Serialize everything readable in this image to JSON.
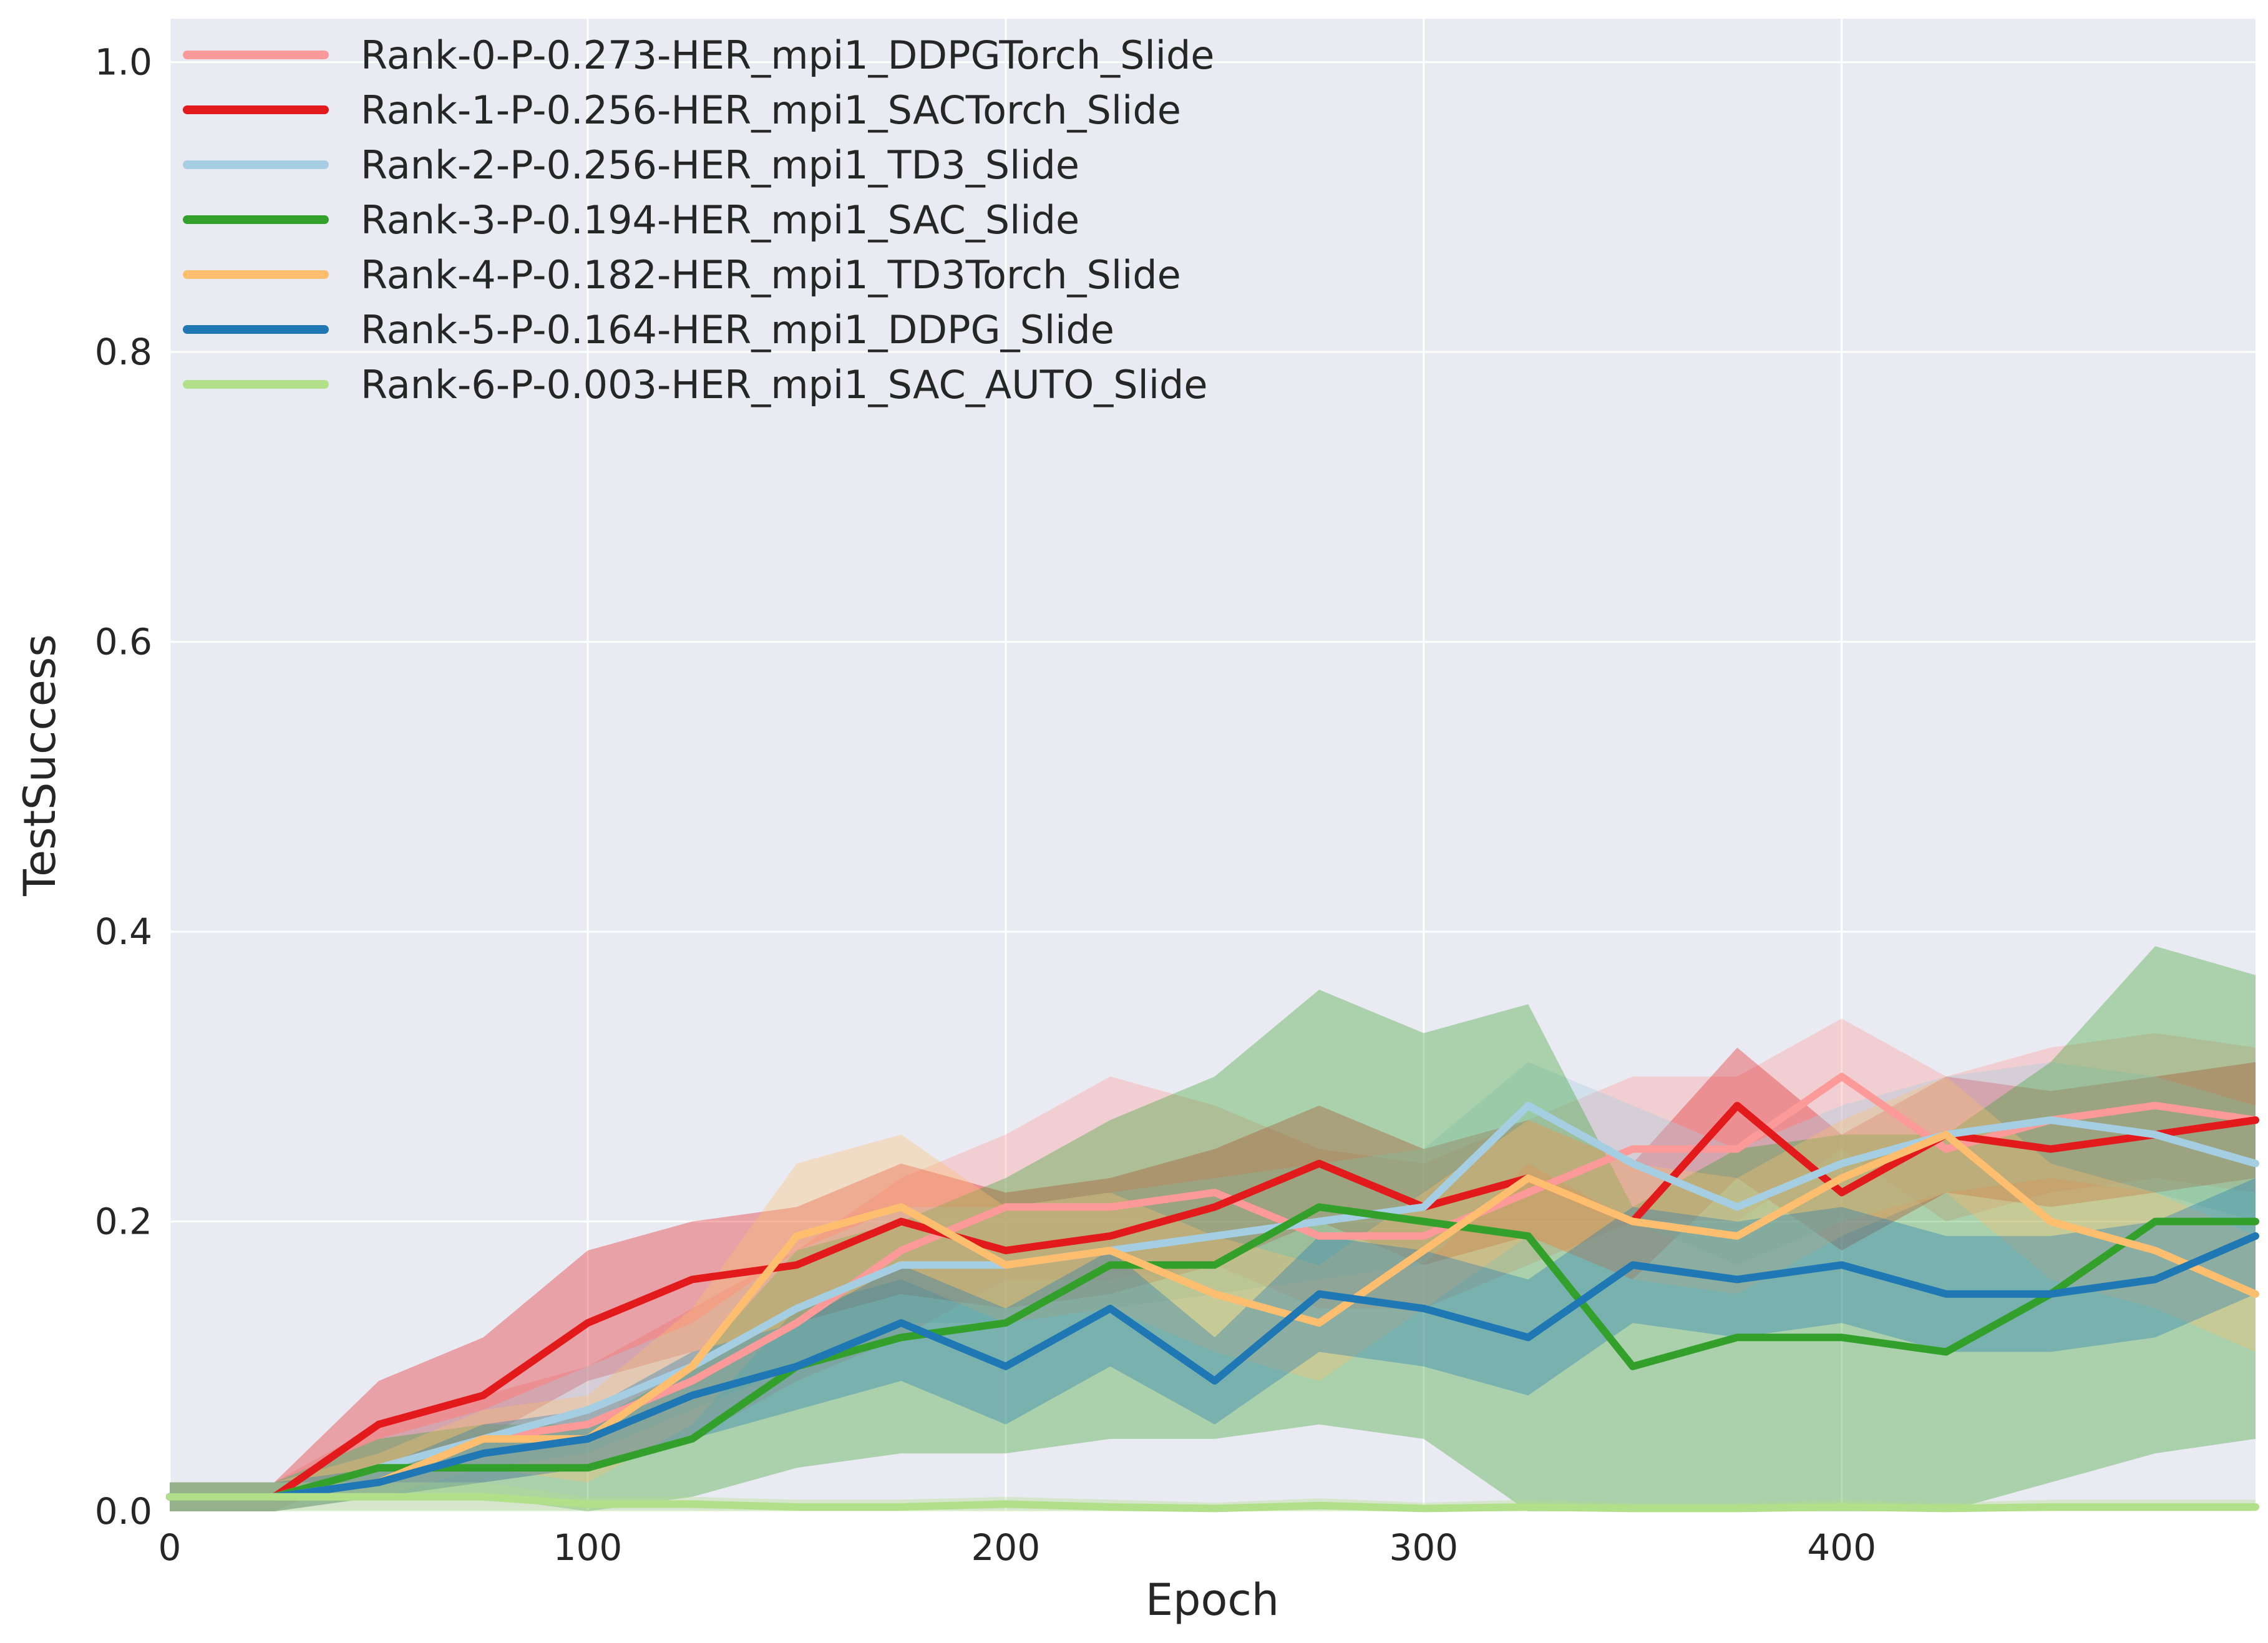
{
  "chart_data": {
    "type": "line",
    "title": "",
    "xlabel": "Epoch",
    "ylabel": "TestSuccess",
    "xlim": [
      0,
      499
    ],
    "ylim": [
      0,
      1.03
    ],
    "xticks": [
      0,
      100,
      200,
      300,
      400
    ],
    "xtick_labels": [
      "0",
      "100",
      "200",
      "300",
      "400"
    ],
    "yticks": [
      0.0,
      0.2,
      0.4,
      0.6,
      0.8,
      1.0
    ],
    "ytick_labels": [
      "0.0",
      "0.2",
      "0.4",
      "0.6",
      "0.8",
      "1.0"
    ],
    "grid": true,
    "legend_position": "top-left",
    "background_color": "#eaeaf2",
    "x": [
      0,
      25,
      50,
      75,
      100,
      125,
      150,
      175,
      200,
      225,
      250,
      275,
      300,
      325,
      350,
      375,
      400,
      425,
      450,
      475,
      499
    ],
    "series": [
      {
        "name": "Rank-0-P-0.273-HER_mpi1_DDPGTorch_Slide",
        "color": "#fb9a99",
        "values": [
          0.01,
          0.01,
          0.03,
          0.05,
          0.06,
          0.09,
          0.13,
          0.18,
          0.21,
          0.21,
          0.22,
          0.19,
          0.19,
          0.22,
          0.25,
          0.25,
          0.3,
          0.25,
          0.27,
          0.28,
          0.27
        ],
        "lower": [
          0.0,
          0.0,
          0.01,
          0.02,
          0.03,
          0.05,
          0.09,
          0.12,
          0.16,
          0.16,
          0.17,
          0.14,
          0.14,
          0.17,
          0.2,
          0.2,
          0.25,
          0.2,
          0.22,
          0.23,
          0.22
        ],
        "upper": [
          0.02,
          0.02,
          0.06,
          0.08,
          0.1,
          0.14,
          0.18,
          0.23,
          0.26,
          0.3,
          0.28,
          0.25,
          0.24,
          0.27,
          0.3,
          0.3,
          0.34,
          0.3,
          0.32,
          0.33,
          0.32
        ]
      },
      {
        "name": "Rank-1-P-0.256-HER_mpi1_SACTorch_Slide",
        "color": "#e31a1c",
        "values": [
          0.01,
          0.01,
          0.06,
          0.08,
          0.13,
          0.16,
          0.17,
          0.2,
          0.18,
          0.19,
          0.21,
          0.24,
          0.21,
          0.23,
          0.2,
          0.28,
          0.22,
          0.26,
          0.25,
          0.26,
          0.27
        ],
        "lower": [
          0.0,
          0.0,
          0.03,
          0.05,
          0.09,
          0.11,
          0.13,
          0.15,
          0.14,
          0.15,
          0.17,
          0.2,
          0.17,
          0.19,
          0.16,
          0.23,
          0.18,
          0.22,
          0.21,
          0.22,
          0.23
        ],
        "upper": [
          0.02,
          0.02,
          0.09,
          0.12,
          0.18,
          0.2,
          0.21,
          0.24,
          0.22,
          0.23,
          0.25,
          0.28,
          0.25,
          0.27,
          0.24,
          0.32,
          0.26,
          0.3,
          0.29,
          0.3,
          0.31
        ]
      },
      {
        "name": "Rank-2-P-0.256-HER_mpi1_TD3_Slide",
        "color": "#a6cee3",
        "values": [
          0.01,
          0.01,
          0.03,
          0.05,
          0.07,
          0.1,
          0.14,
          0.17,
          0.17,
          0.18,
          0.19,
          0.2,
          0.21,
          0.28,
          0.24,
          0.21,
          0.24,
          0.26,
          0.27,
          0.26,
          0.24
        ],
        "lower": [
          0.0,
          0.0,
          0.01,
          0.03,
          0.04,
          0.07,
          0.1,
          0.13,
          0.13,
          0.14,
          0.15,
          0.16,
          0.17,
          0.24,
          0.2,
          0.17,
          0.2,
          0.22,
          0.23,
          0.22,
          0.2
        ],
        "upper": [
          0.02,
          0.02,
          0.05,
          0.07,
          0.1,
          0.13,
          0.18,
          0.21,
          0.21,
          0.22,
          0.23,
          0.24,
          0.25,
          0.31,
          0.28,
          0.25,
          0.28,
          0.3,
          0.31,
          0.3,
          0.28
        ]
      },
      {
        "name": "Rank-3-P-0.194-HER_mpi1_SAC_Slide",
        "color": "#33a02c",
        "values": [
          0.01,
          0.01,
          0.03,
          0.03,
          0.03,
          0.05,
          0.1,
          0.12,
          0.13,
          0.17,
          0.17,
          0.21,
          0.2,
          0.19,
          0.1,
          0.12,
          0.12,
          0.11,
          0.15,
          0.2,
          0.2
        ],
        "lower": [
          0.0,
          0.0,
          0.01,
          0.01,
          0.0,
          0.01,
          0.03,
          0.04,
          0.04,
          0.05,
          0.05,
          0.06,
          0.05,
          0.0,
          0.0,
          0.0,
          0.0,
          0.0,
          0.02,
          0.04,
          0.05
        ],
        "upper": [
          0.02,
          0.02,
          0.05,
          0.06,
          0.06,
          0.1,
          0.18,
          0.2,
          0.23,
          0.27,
          0.3,
          0.36,
          0.33,
          0.35,
          0.21,
          0.25,
          0.26,
          0.26,
          0.31,
          0.39,
          0.37
        ]
      },
      {
        "name": "Rank-4-P-0.182-HER_mpi1_TD3Torch_Slide",
        "color": "#fdbf6f",
        "values": [
          0.01,
          0.01,
          0.02,
          0.05,
          0.05,
          0.1,
          0.19,
          0.21,
          0.17,
          0.18,
          0.15,
          0.13,
          0.18,
          0.23,
          0.2,
          0.19,
          0.23,
          0.26,
          0.2,
          0.18,
          0.15
        ],
        "lower": [
          0.0,
          0.0,
          0.01,
          0.03,
          0.02,
          0.06,
          0.14,
          0.16,
          0.13,
          0.14,
          0.11,
          0.09,
          0.14,
          0.19,
          0.16,
          0.15,
          0.19,
          0.22,
          0.16,
          0.14,
          0.11
        ],
        "upper": [
          0.02,
          0.02,
          0.04,
          0.07,
          0.08,
          0.14,
          0.24,
          0.26,
          0.21,
          0.22,
          0.19,
          0.17,
          0.22,
          0.27,
          0.24,
          0.23,
          0.27,
          0.3,
          0.24,
          0.22,
          0.19
        ]
      },
      {
        "name": "Rank-5-P-0.164-HER_mpi1_DDPG_Slide",
        "color": "#1f78b4",
        "values": [
          0.01,
          0.01,
          0.02,
          0.04,
          0.05,
          0.08,
          0.1,
          0.13,
          0.1,
          0.14,
          0.09,
          0.15,
          0.14,
          0.12,
          0.17,
          0.16,
          0.17,
          0.15,
          0.15,
          0.16,
          0.19
        ],
        "lower": [
          0.0,
          0.0,
          0.01,
          0.02,
          0.03,
          0.05,
          0.07,
          0.09,
          0.06,
          0.1,
          0.06,
          0.11,
          0.1,
          0.08,
          0.13,
          0.12,
          0.13,
          0.11,
          0.11,
          0.12,
          0.15
        ],
        "upper": [
          0.02,
          0.02,
          0.03,
          0.06,
          0.07,
          0.11,
          0.13,
          0.17,
          0.14,
          0.18,
          0.12,
          0.19,
          0.18,
          0.16,
          0.21,
          0.2,
          0.21,
          0.19,
          0.19,
          0.2,
          0.23
        ]
      },
      {
        "name": "Rank-6-P-0.003-HER_mpi1_SAC_AUTO_Slide",
        "color": "#b2df8a",
        "values": [
          0.01,
          0.01,
          0.01,
          0.01,
          0.005,
          0.005,
          0.003,
          0.003,
          0.005,
          0.003,
          0.002,
          0.004,
          0.002,
          0.003,
          0.002,
          0.002,
          0.003,
          0.002,
          0.003,
          0.003,
          0.003
        ],
        "lower": [
          0.0,
          0.0,
          0.0,
          0.0,
          0.0,
          0.0,
          0.0,
          0.0,
          0.0,
          0.0,
          0.0,
          0.0,
          0.0,
          0.0,
          0.0,
          0.0,
          0.0,
          0.0,
          0.0,
          0.0,
          0.0
        ],
        "upper": [
          0.02,
          0.02,
          0.02,
          0.02,
          0.01,
          0.01,
          0.008,
          0.008,
          0.01,
          0.008,
          0.006,
          0.009,
          0.006,
          0.008,
          0.006,
          0.006,
          0.008,
          0.006,
          0.008,
          0.008,
          0.008
        ]
      }
    ]
  }
}
